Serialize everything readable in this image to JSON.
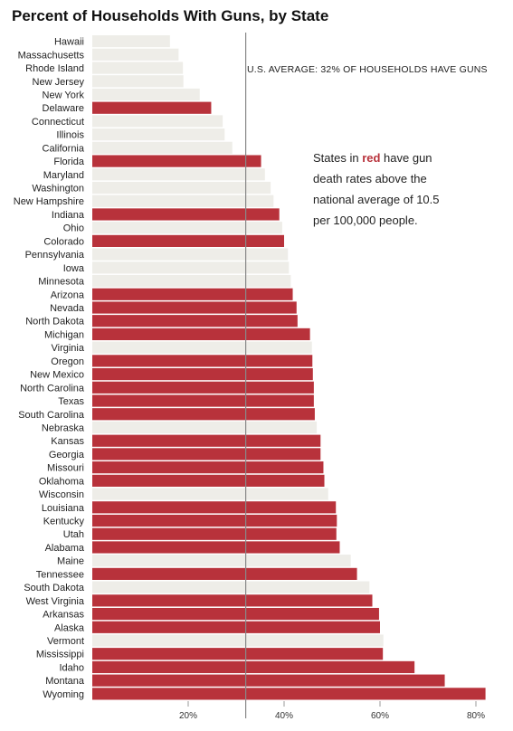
{
  "chart_data": {
    "type": "bar",
    "orientation": "horizontal",
    "title": "Percent of Households With Guns, by State",
    "average_note": "U.S. AVERAGE: 32% OF HOUSEHOLDS HAVE GUNS",
    "average_value": 32,
    "legend_note": {
      "before": "States in ",
      "highlight": "red",
      "after": " have gun death rates above the national average of 10.5 per 100,000 people."
    },
    "xlim": [
      0,
      82
    ],
    "x_ticks": [
      20,
      40,
      60,
      80
    ],
    "x_tick_labels": [
      "20%",
      "40%",
      "60%",
      "80%"
    ],
    "colors": {
      "above_average": "#b8323b",
      "below_average": "#eeede8",
      "average_line": "#888888"
    },
    "categories": [
      "Hawaii",
      "Massachusetts",
      "Rhode Island",
      "New Jersey",
      "New York",
      "Delaware",
      "Connecticut",
      "Illinois",
      "California",
      "Florida",
      "Maryland",
      "Washington",
      "New Hampshire",
      "Indiana",
      "Ohio",
      "Colorado",
      "Pennsylvania",
      "Iowa",
      "Minnesota",
      "Arizona",
      "Nevada",
      "North Dakota",
      "Michigan",
      "Virginia",
      "Oregon",
      "New Mexico",
      "North Carolina",
      "Texas",
      "South Carolina",
      "Nebraska",
      "Kansas",
      "Georgia",
      "Missouri",
      "Oklahoma",
      "Wisconsin",
      "Louisiana",
      "Kentucky",
      "Utah",
      "Alabama",
      "Maine",
      "Tennessee",
      "South Dakota",
      "West Virginia",
      "Arkansas",
      "Alaska",
      "Vermont",
      "Mississippi",
      "Idaho",
      "Montana",
      "Wyoming"
    ],
    "values": [
      16.2,
      18.0,
      18.9,
      19.0,
      22.4,
      24.8,
      27.2,
      27.6,
      29.2,
      35.2,
      36.0,
      37.2,
      37.8,
      39.0,
      39.6,
      40.0,
      40.8,
      41.0,
      41.4,
      41.8,
      42.6,
      42.8,
      45.4,
      45.8,
      45.9,
      46.0,
      46.2,
      46.2,
      46.4,
      46.8,
      47.6,
      47.6,
      48.2,
      48.4,
      49.2,
      50.8,
      51.0,
      50.9,
      51.6,
      53.9,
      55.2,
      57.8,
      58.4,
      59.8,
      60.0,
      60.7,
      60.6,
      67.2,
      73.5,
      82.0
    ],
    "above_average_death_rate": [
      false,
      false,
      false,
      false,
      false,
      true,
      false,
      false,
      false,
      true,
      false,
      false,
      false,
      true,
      false,
      true,
      false,
      false,
      false,
      true,
      true,
      true,
      true,
      false,
      true,
      true,
      true,
      true,
      true,
      false,
      true,
      true,
      true,
      true,
      false,
      true,
      true,
      true,
      true,
      false,
      true,
      false,
      true,
      true,
      true,
      false,
      true,
      true,
      true,
      true
    ]
  }
}
